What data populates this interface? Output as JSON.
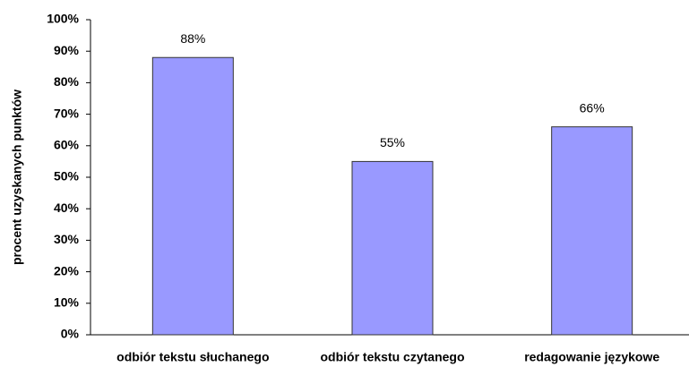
{
  "chart_data": {
    "type": "bar",
    "y_label": "procent uzyskanych punktów",
    "categories": [
      "odbiór tekstu słuchanego",
      "odbiór tekstu czytanego",
      "redagowanie językowe"
    ],
    "values": [
      88,
      55,
      66
    ],
    "value_labels": [
      "88%",
      "55%",
      "66%"
    ],
    "color": "#9999ff",
    "ylim": [
      0,
      100
    ],
    "yticks": [
      {
        "value": 0,
        "label": "0%"
      },
      {
        "value": 10,
        "label": "10%"
      },
      {
        "value": 20,
        "label": "20%"
      },
      {
        "value": 30,
        "label": "30%"
      },
      {
        "value": 40,
        "label": "40%"
      },
      {
        "value": 50,
        "label": "50%"
      },
      {
        "value": 60,
        "label": "60%"
      },
      {
        "value": 70,
        "label": "70%"
      },
      {
        "value": 80,
        "label": "80%"
      },
      {
        "value": 90,
        "label": "90%"
      },
      {
        "value": 100,
        "label": "100%"
      }
    ],
    "grid": false
  }
}
